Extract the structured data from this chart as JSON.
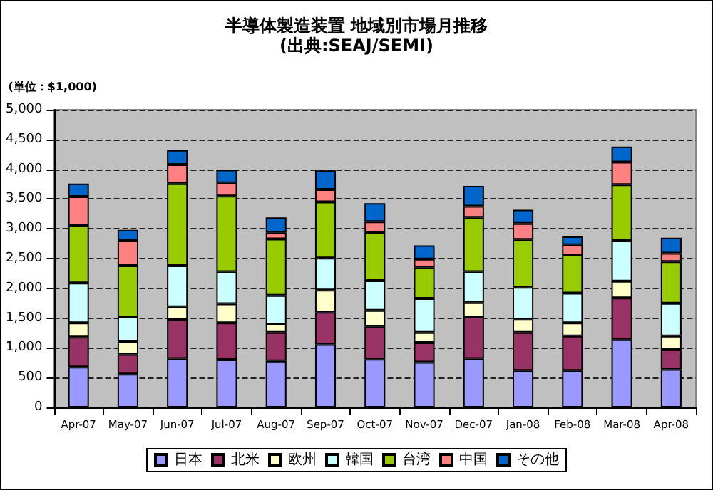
{
  "chart_data": {
    "type": "bar",
    "stacked": true,
    "title": "半導体製造装置 地域別市場月推移",
    "subtitle": "(出典:SEAJ/SEMI)",
    "ylabel": "(単位：$1,000)",
    "categories": [
      "Apr-07",
      "May-07",
      "Jun-07",
      "Jul-07",
      "Aug-07",
      "Sep-07",
      "Oct-07",
      "Nov-07",
      "Dec-07",
      "Jan-08",
      "Feb-08",
      "Mar-08",
      "Apr-08"
    ],
    "series": [
      {
        "name": "日本",
        "color": "#9999ff",
        "values": [
          680,
          560,
          820,
          800,
          780,
          1060,
          810,
          760,
          820,
          620,
          620,
          1140,
          640
        ]
      },
      {
        "name": "北米",
        "color": "#993366",
        "values": [
          500,
          330,
          650,
          620,
          480,
          540,
          550,
          330,
          700,
          640,
          580,
          700,
          330
        ]
      },
      {
        "name": "欧州",
        "color": "#ffffcc",
        "values": [
          240,
          210,
          220,
          320,
          140,
          370,
          270,
          170,
          240,
          220,
          220,
          280,
          230
        ]
      },
      {
        "name": "韓国",
        "color": "#ccffff",
        "values": [
          670,
          420,
          690,
          540,
          480,
          540,
          500,
          570,
          520,
          540,
          500,
          680,
          550
        ]
      },
      {
        "name": "台湾",
        "color": "#99cc00",
        "values": [
          960,
          860,
          1380,
          1270,
          950,
          940,
          800,
          520,
          910,
          800,
          640,
          940,
          700
        ]
      },
      {
        "name": "中国",
        "color": "#ff8080",
        "values": [
          490,
          420,
          320,
          220,
          110,
          210,
          190,
          140,
          190,
          270,
          170,
          380,
          140
        ]
      },
      {
        "name": "その他",
        "color": "#0066cc",
        "values": [
          220,
          180,
          240,
          220,
          250,
          320,
          310,
          230,
          340,
          230,
          140,
          260,
          260
        ]
      }
    ],
    "ylim": [
      0,
      5000
    ],
    "yticks": [
      0,
      500,
      {
        "value": 1000,
        "label": "1,000"
      },
      {
        "value": 1500,
        "label": "1,500"
      },
      {
        "value": 2000,
        "label": "2,000"
      },
      {
        "value": 2500,
        "label": "2,500"
      },
      {
        "value": 3000,
        "label": "3,000"
      },
      {
        "value": 3500,
        "label": "3,500"
      },
      {
        "value": 4000,
        "label": "4,000"
      },
      {
        "value": 4500,
        "label": "4,500"
      },
      {
        "value": 5000,
        "label": "5,000"
      }
    ],
    "grid": "y",
    "legend": "bottom"
  }
}
